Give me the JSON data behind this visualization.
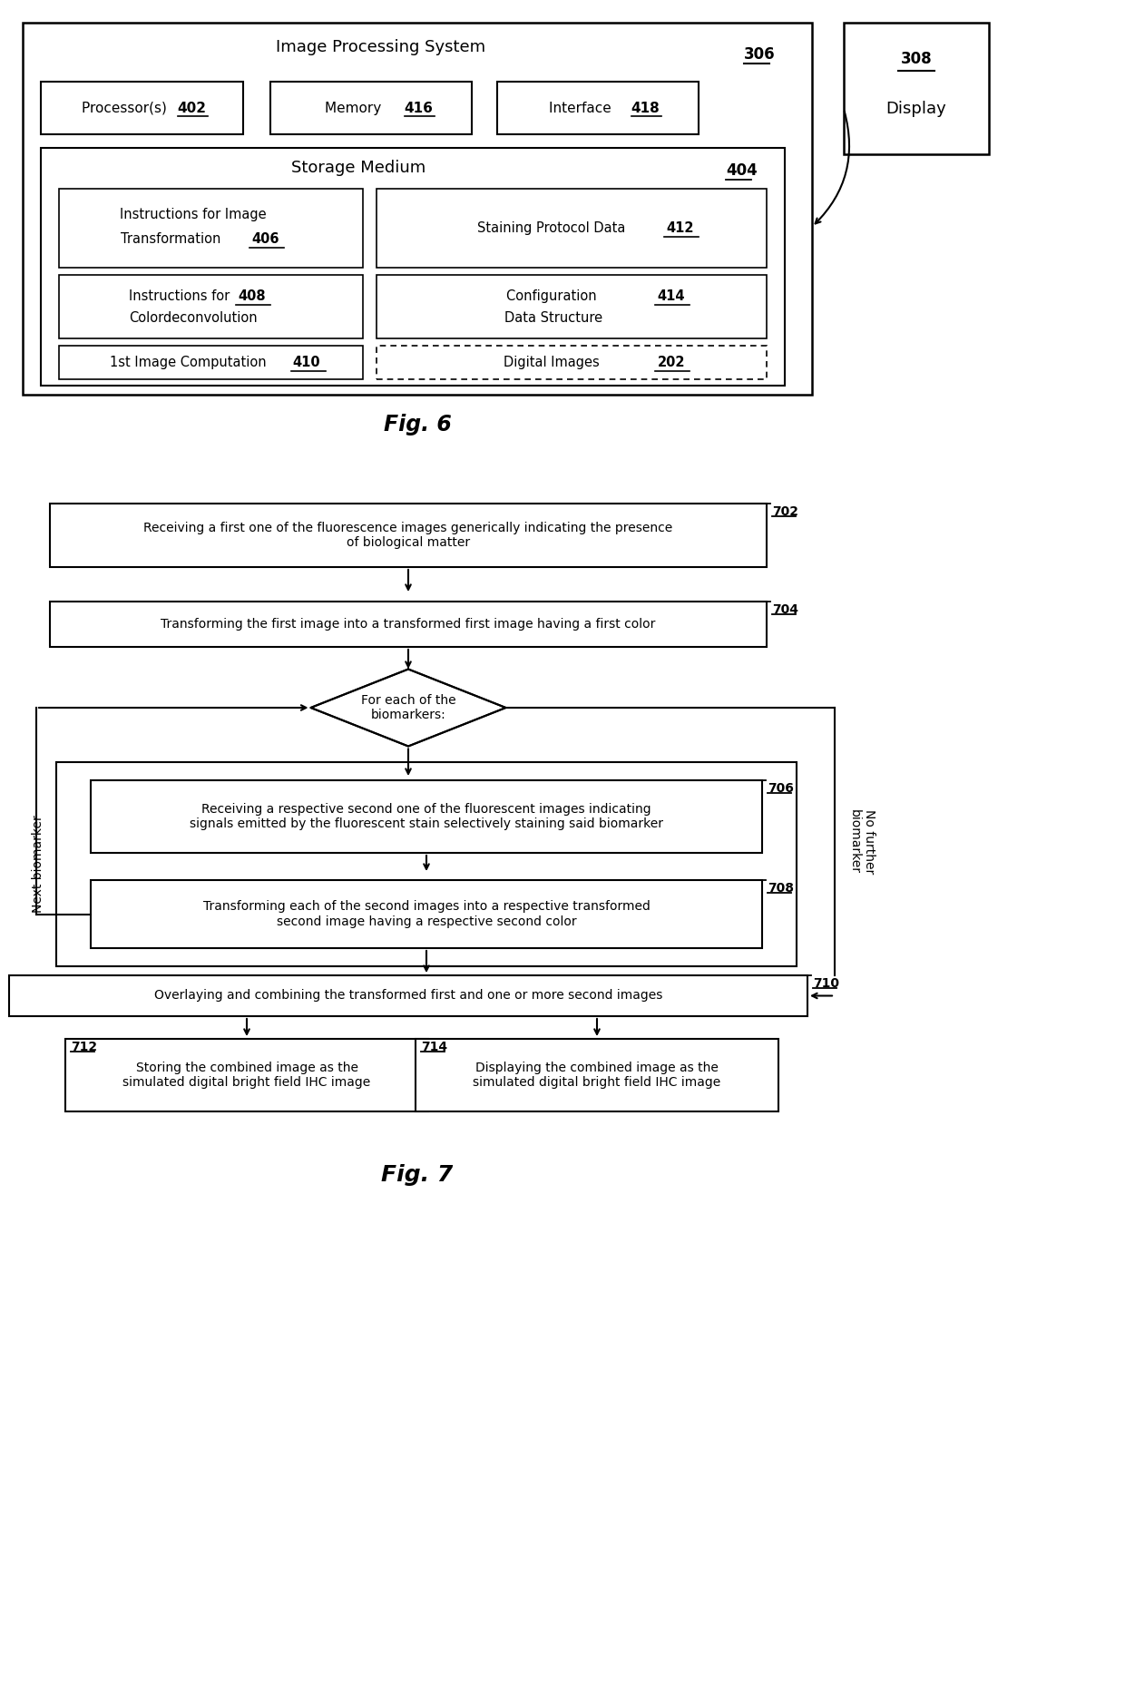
{
  "bg_color": "#ffffff",
  "fig6_title": "Fig. 6",
  "fig7_title": "Fig. 7",
  "outer_label": "Image Processing System",
  "outer_ref": "306",
  "display_ref": "308",
  "display_label": "Display",
  "proc_label": "Processor(s)",
  "proc_ref": "402",
  "mem_label": "Memory",
  "mem_ref": "416",
  "iface_label": "Interface",
  "iface_ref": "418",
  "storage_label": "Storage Medium",
  "storage_ref": "404",
  "box406_line1": "Instructions for Image",
  "box406_line2": "Transformation",
  "box406_ref": "406",
  "box412_label": "Staining Protocol Data",
  "box412_ref": "412",
  "box408_line1": "Instructions for",
  "box408_line2": "Colordeconvolution",
  "box408_ref": "408",
  "box414_line1": "Configuration",
  "box414_line2": "Data Structure",
  "box414_ref": "414",
  "box410_label": "1st Image Computation",
  "box410_ref": "410",
  "box202_label": "Digital Images",
  "box202_ref": "202",
  "b702_label": "Receiving a first one of the fluorescence images generically indicating the presence\nof biological matter",
  "b702_ref": "702",
  "b704_label": "Transforming the first image into a transformed first image having a first color",
  "b704_ref": "704",
  "diamond_label": "For each of the\nbiomarkers:",
  "b706_label": "Receiving a respective second one of the fluorescent images indicating\nsignals emitted by the fluorescent stain selectively staining said biomarker",
  "b706_ref": "706",
  "b708_label": "Transforming each of the second images into a respective transformed\nsecond image having a respective second color",
  "b708_ref": "708",
  "b710_label": "Overlaying and combining the transformed first and one or more second images",
  "b710_ref": "710",
  "b712_label": "Storing the combined image as the\nsimulated digital bright field IHC image",
  "b712_ref": "712",
  "b714_label": "Displaying the combined image as the\nsimulated digital bright field IHC image",
  "b714_ref": "714",
  "next_biomarker_label": "Next biomarker",
  "no_further_label": "No further\nbiomarker"
}
